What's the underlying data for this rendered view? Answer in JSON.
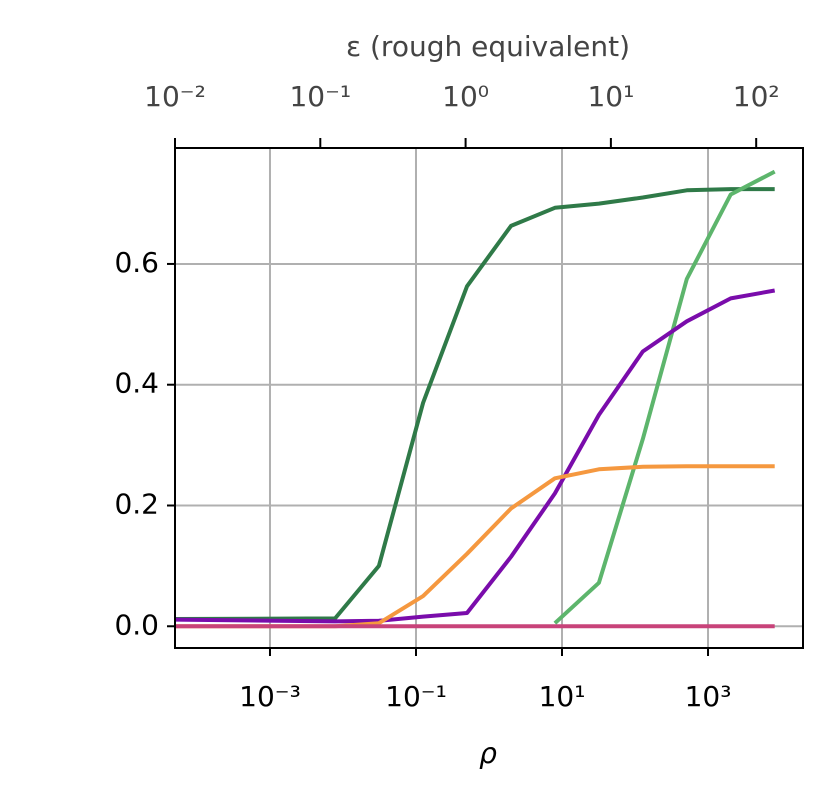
{
  "chart_data": {
    "type": "line",
    "xlabel": "ρ",
    "x2label": "ε (rough equivalent)",
    "xscale": "log",
    "x": [
      5e-05,
      0.0078,
      0.031,
      0.125,
      0.5,
      2,
      8,
      32,
      128,
      512,
      2048,
      8192
    ],
    "xlim": [
      5e-05,
      20000
    ],
    "xticks": [
      {
        "value": 0.001,
        "label": "10⁻³"
      },
      {
        "value": 0.1,
        "label": "10⁻¹"
      },
      {
        "value": 10,
        "label": "10¹"
      },
      {
        "value": 1000,
        "label": "10³"
      }
    ],
    "x2lim": [
      0.01,
      210
    ],
    "x2ticks": [
      {
        "value": 0.01,
        "label": "10⁻²"
      },
      {
        "value": 0.1,
        "label": "10⁻¹"
      },
      {
        "value": 1,
        "label": "10⁰"
      },
      {
        "value": 10,
        "label": "10¹"
      },
      {
        "value": 100,
        "label": "10²"
      }
    ],
    "ylim": [
      -0.036,
      0.792
    ],
    "yticks": [
      {
        "value": 0,
        "label": "0.0"
      },
      0.2,
      0.4,
      0.6
    ],
    "grid": true,
    "series": [
      {
        "color": "#2f7a48",
        "values": [
          0.012,
          0.013,
          0.1,
          0.37,
          0.563,
          0.663,
          0.693,
          0.7,
          0.71,
          0.722,
          0.724,
          0.724
        ]
      },
      {
        "color": "#5db56c",
        "values": [
          null,
          null,
          null,
          null,
          null,
          null,
          0.005,
          0.072,
          0.31,
          0.575,
          0.715,
          0.753
        ]
      },
      {
        "color": "#7a0cab",
        "values": [
          0.011,
          0.008,
          0.009,
          0.016,
          0.022,
          0.115,
          0.22,
          0.35,
          0.455,
          0.505,
          0.543,
          0.556
        ]
      },
      {
        "color": "#f5983f",
        "values": [
          0.0,
          0.0,
          0.005,
          0.05,
          0.12,
          0.195,
          0.245,
          0.26,
          0.264,
          0.265,
          0.265,
          0.265
        ]
      },
      {
        "color": "#c8437a",
        "values": [
          0,
          0,
          0,
          0,
          0,
          0,
          0,
          0,
          0,
          0,
          0,
          0
        ]
      }
    ]
  }
}
